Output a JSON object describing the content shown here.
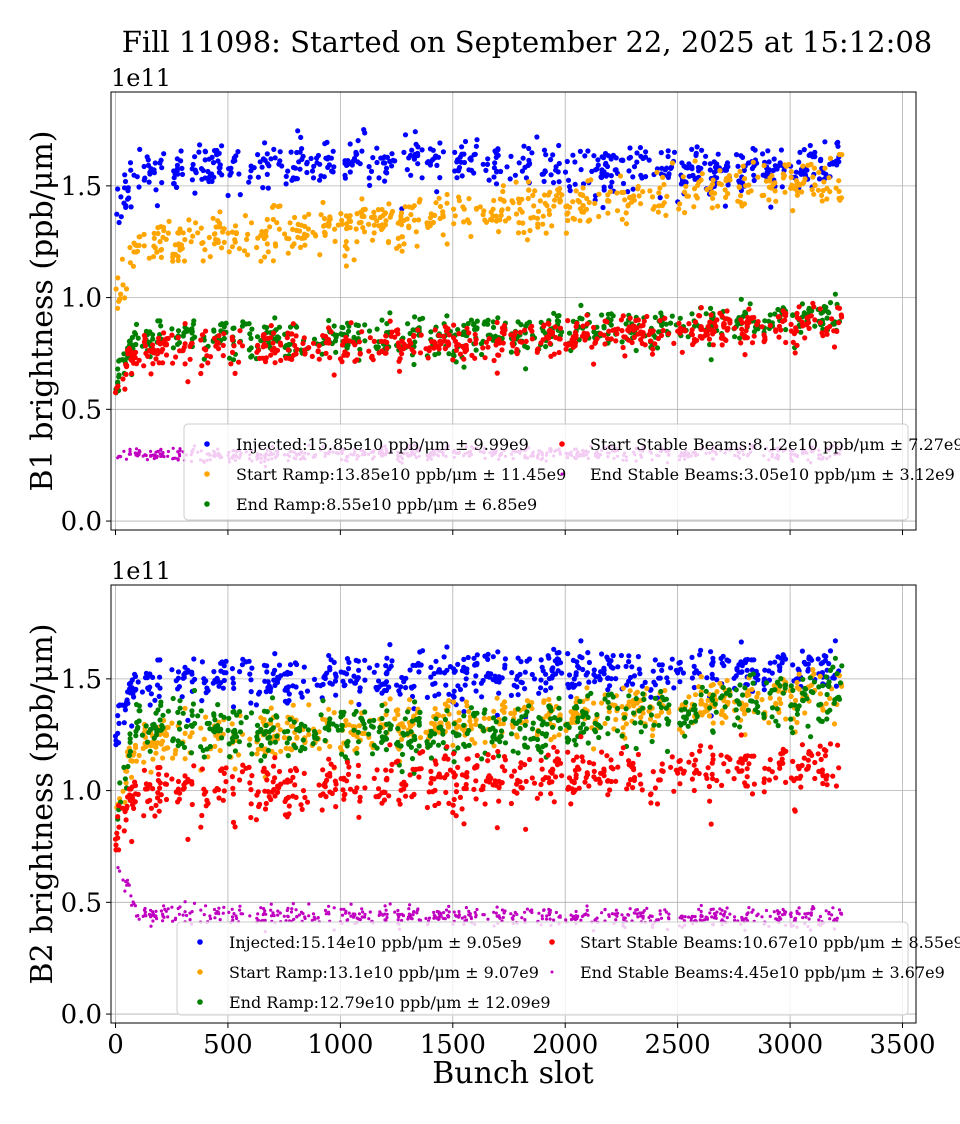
{
  "chart_data": [
    {
      "type": "scatter",
      "title": "Fill 11098: Started on September 22, 2025 at 15:12:08",
      "xlabel": "",
      "ylabel": "B1 brightness (ppb/μm)",
      "y_offset_label": "1e11",
      "xlim": [
        -20,
        3560
      ],
      "ylim": [
        -0.04,
        1.92
      ],
      "xticks": [
        0,
        500,
        1000,
        1500,
        2000,
        2500,
        3000,
        3500
      ],
      "yticks": [
        "0.0",
        "0.5",
        "1.0",
        "1.5"
      ],
      "grid": true,
      "legend_placement": "lower-right",
      "series": [
        {
          "name": "Injected:15.85e10 ppb/μm ± 9.99e9",
          "color": "#0000ff",
          "trend": [
            [
              0,
              1.4
            ],
            [
              100,
              1.58
            ],
            [
              1500,
              1.62
            ],
            [
              2000,
              1.57
            ],
            [
              3230,
              1.6
            ]
          ],
          "spread": 0.05
        },
        {
          "name": "Start Ramp:13.85e10 ppb/μm ± 11.45e9",
          "color": "#ffa500",
          "trend": [
            [
              0,
              1.0
            ],
            [
              100,
              1.24
            ],
            [
              1000,
              1.33
            ],
            [
              2000,
              1.42
            ],
            [
              3230,
              1.55
            ]
          ],
          "spread": 0.05
        },
        {
          "name": "End Ramp:8.55e10 ppb/μm ± 6.85e9",
          "color": "#008000",
          "trend": [
            [
              0,
              0.65
            ],
            [
              100,
              0.83
            ],
            [
              1500,
              0.82
            ],
            [
              3230,
              0.92
            ]
          ],
          "spread": 0.04
        },
        {
          "name": "Start Stable Beams:8.12e10 ppb/μm ± 7.27e9",
          "color": "#ff0000",
          "trend": [
            [
              0,
              0.62
            ],
            [
              100,
              0.77
            ],
            [
              1500,
              0.8
            ],
            [
              3230,
              0.9
            ]
          ],
          "spread": 0.04
        },
        {
          "name": "End Stable Beams:3.05e10 ppb/μm ± 3.12e9",
          "color": "#c000c0",
          "trend": [
            [
              0,
              0.3
            ],
            [
              3230,
              0.31
            ]
          ],
          "spread": 0.015
        }
      ]
    },
    {
      "type": "scatter",
      "xlabel": "Bunch slot",
      "ylabel": "B2 brightness (ppb/μm)",
      "y_offset_label": "1e11",
      "xlim": [
        -20,
        3560
      ],
      "ylim": [
        -0.04,
        1.92
      ],
      "xticks": [
        0,
        500,
        1000,
        1500,
        2000,
        2500,
        3000,
        3500
      ],
      "yticks": [
        "0.0",
        "0.5",
        "1.0",
        "1.5"
      ],
      "grid": true,
      "legend_placement": "lower-right",
      "series": [
        {
          "name": "Injected:15.14e10 ppb/μm ± 9.05e9",
          "color": "#0000ff",
          "trend": [
            [
              0,
              1.3
            ],
            [
              100,
              1.5
            ],
            [
              1500,
              1.52
            ],
            [
              3230,
              1.55
            ]
          ],
          "spread": 0.05
        },
        {
          "name": "Start Ramp:13.1e10 ppb/μm ± 9.07e9",
          "color": "#ffa500",
          "trend": [
            [
              0,
              0.95
            ],
            [
              100,
              1.22
            ],
            [
              1500,
              1.3
            ],
            [
              3230,
              1.45
            ]
          ],
          "spread": 0.05
        },
        {
          "name": "End Ramp:12.79e10 ppb/μm ± 12.09e9",
          "color": "#008000",
          "trend": [
            [
              0,
              0.9
            ],
            [
              100,
              1.32
            ],
            [
              1500,
              1.25
            ],
            [
              3230,
              1.45
            ]
          ],
          "spread": 0.06
        },
        {
          "name": "Start Stable Beams:10.67e10 ppb/μm ± 8.55e9",
          "color": "#ff0000",
          "trend": [
            [
              0,
              0.85
            ],
            [
              100,
              1.0
            ],
            [
              1500,
              1.05
            ],
            [
              3230,
              1.12
            ]
          ],
          "spread": 0.06
        },
        {
          "name": "End Stable Beams:4.45e10 ppb/μm ± 3.67e9",
          "color": "#c000c0",
          "trend": [
            [
              0,
              0.7
            ],
            [
              100,
              0.45
            ],
            [
              1500,
              0.44
            ],
            [
              3230,
              0.44
            ]
          ],
          "spread": 0.02
        }
      ]
    }
  ]
}
